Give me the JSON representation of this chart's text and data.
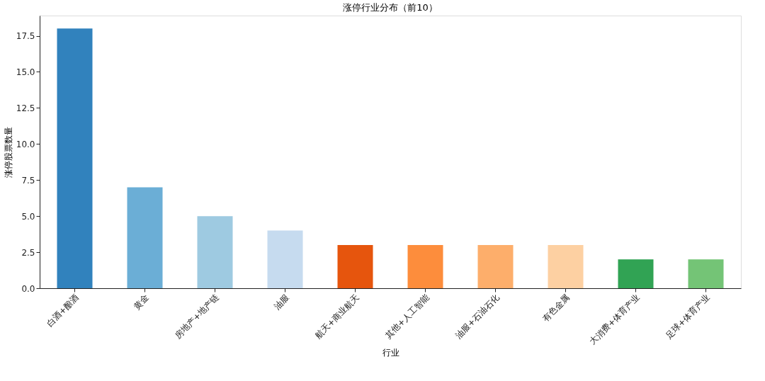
{
  "chart_data": {
    "type": "bar",
    "title": "涨停行业分布（前10）",
    "xlabel": "行业",
    "ylabel": "涨停股票数量",
    "categories": [
      "白酒+酿酒",
      "黄金",
      "房地产+地产链",
      "油服",
      "航天+商业航天",
      "其他+人工智能",
      "油服+石油石化",
      "有色金属",
      "大消费+体育产业",
      "足球+体育产业"
    ],
    "values": [
      18,
      7,
      5,
      4,
      3,
      3,
      3,
      3,
      2,
      2
    ],
    "colors": [
      "#3182bd",
      "#6baed6",
      "#9ecae1",
      "#c6dbef",
      "#e6550d",
      "#fd8d3c",
      "#fdae6b",
      "#fdd0a2",
      "#31a354",
      "#74c476"
    ],
    "ylim": [
      0,
      18.9
    ],
    "yticks": [
      {
        "value": 0,
        "label": "0.0"
      },
      {
        "value": 2.5,
        "label": "2.5"
      },
      {
        "value": 5,
        "label": "5.0"
      },
      {
        "value": 7.5,
        "label": "7.5"
      },
      {
        "value": 10,
        "label": "10.0"
      },
      {
        "value": 12.5,
        "label": "12.5"
      },
      {
        "value": 15,
        "label": "15.0"
      },
      {
        "value": 17.5,
        "label": "17.5"
      }
    ],
    "grid": false,
    "legend": false
  }
}
